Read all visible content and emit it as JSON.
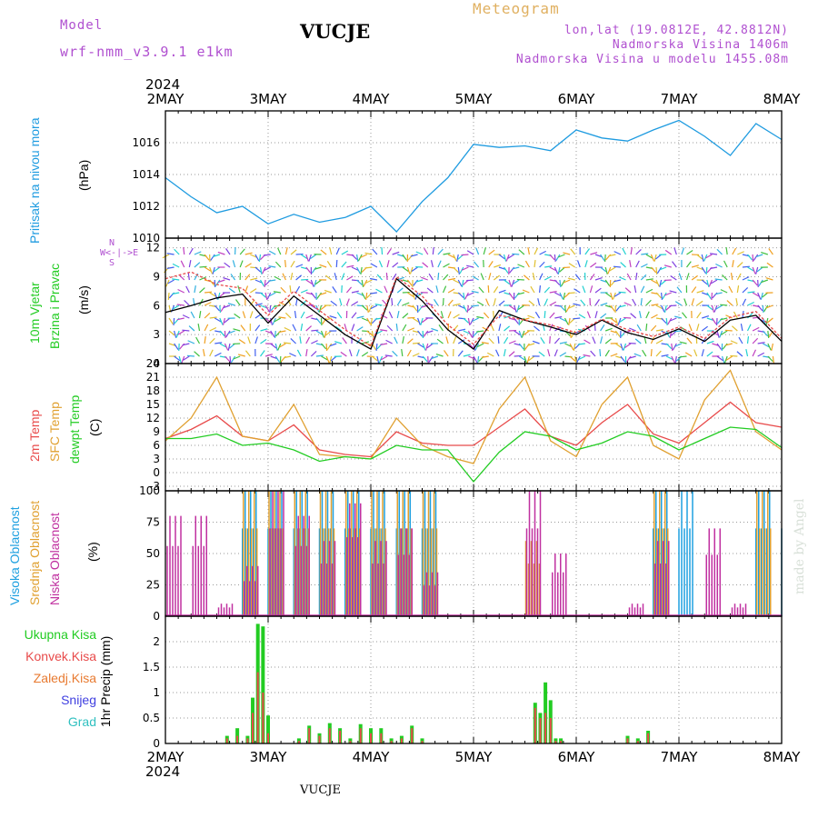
{
  "header": {
    "model_label": "Model",
    "model_name": "wrf-nmm_v3.9.1 e1km",
    "station": "VUCJE",
    "type": "Meteogram",
    "lonlat": "lon,lat (19.0812E, 42.8812N)",
    "elev": "Nadmorska Visina 1406m",
    "elev_model": "Nadmorska Visina u modelu 1455.08m",
    "footer_station": "VUCJE",
    "credit": "made by Angel",
    "year": "2024"
  },
  "colors": {
    "pressure": "#1e9be0",
    "temp2m": "#e84a4a",
    "sfctemp": "#e0a030",
    "dewpt": "#22cc22",
    "cloud_high": "#1ea0e0",
    "cloud_mid": "#e0a030",
    "cloud_low": "#c030a0",
    "precip_total": "#22cc22",
    "precip_conv": "#e84a4a",
    "precip_strat": "#e87a30",
    "snow": "#4040e0",
    "hail": "#30c0c0",
    "model_label": "#b050d0",
    "meteogram_label": "#e0b060"
  },
  "chart_data": [
    {
      "type": "line",
      "panel": "pressure",
      "ylabel_a": "Pritisak na nivou mora",
      "ylabel_b": "(hPa)",
      "ylim": [
        1010,
        1018
      ],
      "yticks": [
        1010,
        1012,
        1014,
        1016
      ],
      "x_days": [
        "2MAY",
        "3MAY",
        "4MAY",
        "5MAY",
        "6MAY",
        "7MAY",
        "8MAY"
      ],
      "x": [
        0.0,
        0.25,
        0.5,
        0.75,
        1.0,
        1.25,
        1.5,
        1.75,
        2.0,
        2.25,
        2.5,
        2.75,
        3.0,
        3.25,
        3.5,
        3.75,
        4.0,
        4.25,
        4.5,
        4.75,
        5.0,
        5.25,
        5.5,
        5.75,
        6.0
      ],
      "values": [
        1013.8,
        1012.6,
        1011.6,
        1012.0,
        1010.9,
        1011.5,
        1011.0,
        1011.3,
        1012.0,
        1010.4,
        1012.3,
        1013.8,
        1015.9,
        1015.7,
        1015.8,
        1015.5,
        1016.8,
        1016.3,
        1016.1,
        1016.8,
        1017.4,
        1016.4,
        1015.2,
        1017.2,
        1016.2
      ]
    },
    {
      "type": "line",
      "panel": "wind",
      "ylabel_a": "10m Vjetar",
      "ylabel_b": "Brzina i Pravac",
      "ylabel_c": "(m/s)",
      "ylim": [
        0,
        13
      ],
      "yticks": [
        0,
        3,
        6,
        9,
        12
      ],
      "compass": [
        "N",
        "S",
        "W",
        "E"
      ],
      "x": [
        0.0,
        0.25,
        0.5,
        0.75,
        1.0,
        1.25,
        1.5,
        1.75,
        2.0,
        2.25,
        2.5,
        2.75,
        3.0,
        3.25,
        3.5,
        3.75,
        4.0,
        4.25,
        4.5,
        4.75,
        5.0,
        5.25,
        5.5,
        5.75,
        6.0
      ],
      "values": [
        5.3,
        6.0,
        6.8,
        7.2,
        4.2,
        7.0,
        5.0,
        3.0,
        1.5,
        8.8,
        6.5,
        3.5,
        1.5,
        5.5,
        4.5,
        3.8,
        3.0,
        4.5,
        3.2,
        2.5,
        3.6,
        2.3,
        4.5,
        5.0,
        2.3
      ],
      "gust": [
        8.8,
        9.5,
        8.2,
        7.8,
        5.0,
        7.5,
        5.5,
        3.5,
        1.8,
        9.0,
        7.0,
        4.0,
        2.0,
        5.0,
        4.5,
        4.0,
        3.2,
        4.6,
        3.5,
        2.8,
        3.8,
        2.6,
        4.8,
        5.4,
        2.6
      ]
    },
    {
      "type": "line",
      "panel": "temperature",
      "ylabel_a": "2m Temp",
      "ylabel_b": "SFC Temp",
      "ylabel_c": "dewpt Temp",
      "ylabel_d": "(C)",
      "ylim": [
        -4,
        24
      ],
      "yticks": [
        -3,
        0,
        3,
        6,
        9,
        12,
        15,
        18,
        21,
        24
      ],
      "x": [
        0.0,
        0.25,
        0.5,
        0.75,
        1.0,
        1.25,
        1.5,
        1.75,
        2.0,
        2.25,
        2.5,
        2.75,
        3.0,
        3.25,
        3.5,
        3.75,
        4.0,
        4.25,
        4.5,
        4.75,
        5.0,
        5.25,
        5.5,
        5.75,
        6.0
      ],
      "series": [
        {
          "name": "2m Temp",
          "values": [
            7.5,
            9.5,
            12.5,
            8.0,
            7.0,
            10.5,
            5.0,
            4.0,
            3.5,
            9.0,
            6.5,
            6.0,
            6.0,
            10.0,
            14.0,
            8.0,
            6.0,
            11.0,
            15.0,
            8.5,
            6.5,
            11.0,
            15.5,
            11.0,
            10.0
          ]
        },
        {
          "name": "SFC Temp",
          "values": [
            7.0,
            12.0,
            21.0,
            8.0,
            7.0,
            15.0,
            4.0,
            3.5,
            3.0,
            12.0,
            6.0,
            3.5,
            2.0,
            14.0,
            21.0,
            7.0,
            3.5,
            15.0,
            21.0,
            6.0,
            3.0,
            16.0,
            22.5,
            9.0,
            5.0
          ]
        },
        {
          "name": "dewpt Temp",
          "values": [
            7.5,
            7.5,
            8.5,
            6.0,
            6.5,
            5.0,
            2.5,
            3.5,
            3.0,
            6.0,
            5.0,
            5.0,
            -2.0,
            4.5,
            9.0,
            8.0,
            5.0,
            6.5,
            9.0,
            8.0,
            5.0,
            7.5,
            10.0,
            9.5,
            5.5
          ]
        }
      ]
    },
    {
      "type": "bar",
      "panel": "cloud",
      "ylabel_a": "Visoka Oblacnost",
      "ylabel_b": "Srednja Oblacnost",
      "ylabel_c": "Niska Oblacnost",
      "ylabel_d": "(%)",
      "ylim": [
        0,
        100
      ],
      "yticks": [
        0,
        25,
        50,
        75,
        100
      ],
      "x": [
        0.0,
        0.25,
        0.5,
        0.75,
        1.0,
        1.25,
        1.5,
        1.75,
        2.0,
        2.25,
        2.5,
        2.75,
        3.0,
        3.25,
        3.5,
        3.75,
        4.0,
        4.25,
        4.5,
        4.75,
        5.0,
        5.25,
        5.5,
        5.75,
        6.0
      ],
      "series": [
        {
          "name": "Visoka Oblacnost",
          "values": [
            0,
            0,
            0,
            100,
            100,
            100,
            100,
            100,
            100,
            100,
            100,
            0,
            0,
            0,
            0,
            0,
            0,
            0,
            0,
            100,
            100,
            0,
            0,
            100,
            100
          ]
        },
        {
          "name": "Srednja Oblacnost",
          "values": [
            0,
            0,
            0,
            100,
            100,
            100,
            100,
            100,
            100,
            100,
            100,
            0,
            0,
            0,
            60,
            0,
            0,
            0,
            0,
            100,
            0,
            0,
            0,
            100,
            100
          ]
        },
        {
          "name": "Niska Oblacnost",
          "values": [
            80,
            80,
            10,
            40,
            100,
            80,
            60,
            90,
            60,
            70,
            35,
            0,
            0,
            0,
            100,
            50,
            0,
            0,
            10,
            60,
            0,
            70,
            10,
            0,
            60
          ]
        }
      ]
    },
    {
      "type": "bar",
      "panel": "precip",
      "ylabel_a": "1hr Precip (mm)",
      "legend": [
        "Ukupna Kisa",
        "Konvek.Kisa",
        "Zaledj.Kisa",
        "Snijeg",
        "Grad"
      ],
      "ylim": [
        0,
        2.5
      ],
      "yticks": [
        0,
        0.5,
        1,
        1.5,
        2
      ],
      "x": [
        0.6,
        0.7,
        0.8,
        0.85,
        0.9,
        0.95,
        1.0,
        1.3,
        1.4,
        1.5,
        1.6,
        1.7,
        1.8,
        1.9,
        2.0,
        2.1,
        2.2,
        2.3,
        2.4,
        2.5,
        3.6,
        3.65,
        3.7,
        3.75,
        3.8,
        3.85,
        4.5,
        4.6,
        4.7
      ],
      "series": [
        {
          "name": "Ukupna Kisa",
          "values": [
            0.15,
            0.3,
            0.15,
            0.9,
            2.35,
            2.3,
            0.55,
            0.1,
            0.35,
            0.2,
            0.4,
            0.3,
            0.1,
            0.38,
            0.3,
            0.3,
            0.1,
            0.15,
            0.35,
            0.1,
            0.8,
            0.6,
            1.2,
            0.85,
            0.1,
            0.1,
            0.15,
            0.1,
            0.25
          ]
        },
        {
          "name": "Konvek.Kisa",
          "values": [
            0.1,
            0.15,
            0.1,
            0.6,
            1.4,
            1.0,
            0.2,
            0.05,
            0.3,
            0.15,
            0.3,
            0.25,
            0.05,
            0.3,
            0.2,
            0.2,
            0.05,
            0.1,
            0.3,
            0.05,
            0.7,
            0.5,
            0.6,
            0.5,
            0.05,
            0.05,
            0.1,
            0.05,
            0.2
          ]
        }
      ]
    }
  ]
}
